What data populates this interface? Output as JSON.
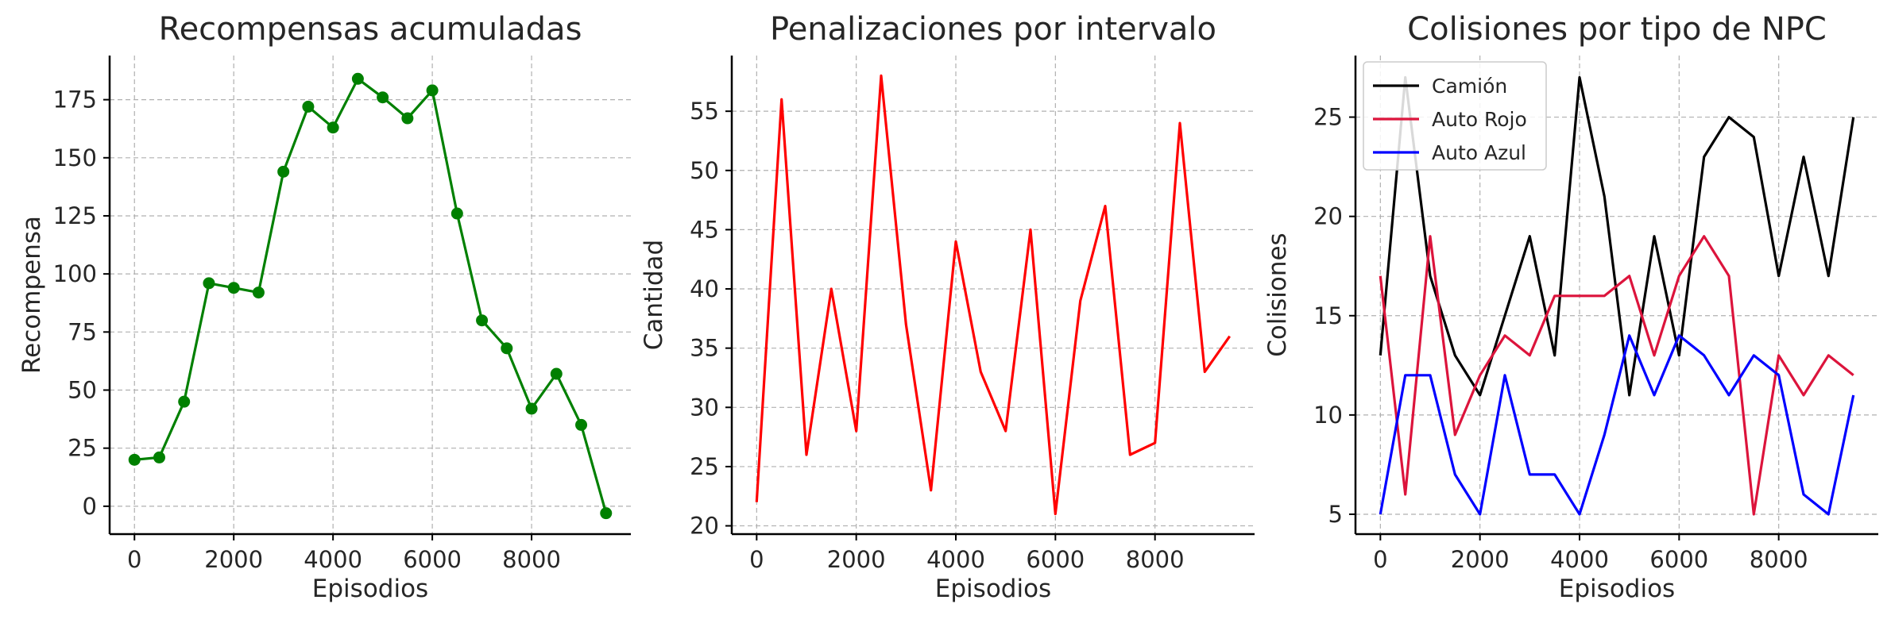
{
  "chart_data": [
    {
      "type": "line",
      "title": "Recompensas acumuladas",
      "xlabel": "Episodios",
      "ylabel": "Recompensa",
      "grid": true,
      "markers": true,
      "color": "#008000",
      "xlim": [
        -500,
        10000
      ],
      "ylim": [
        -12,
        194
      ],
      "xticks": [
        0,
        2000,
        4000,
        6000,
        8000
      ],
      "yticks": [
        0,
        25,
        50,
        75,
        100,
        125,
        150,
        175
      ],
      "x": [
        0,
        500,
        1000,
        1500,
        2000,
        2500,
        3000,
        3500,
        4000,
        4500,
        5000,
        5500,
        6000,
        6500,
        7000,
        7500,
        8000,
        8500,
        9000,
        9500
      ],
      "values": [
        20,
        21,
        45,
        96,
        94,
        92,
        144,
        172,
        163,
        184,
        176,
        167,
        179,
        126,
        80,
        68,
        42,
        57,
        35,
        -3
      ]
    },
    {
      "type": "line",
      "title": "Penalizaciones por intervalo",
      "xlabel": "Episodios",
      "ylabel": "Cantidad",
      "grid": true,
      "color": "#ff0000",
      "xlim": [
        -500,
        10000
      ],
      "ylim": [
        19.3,
        59.7
      ],
      "xticks": [
        0,
        2000,
        4000,
        6000,
        8000
      ],
      "yticks": [
        20,
        25,
        30,
        35,
        40,
        45,
        50,
        55
      ],
      "x": [
        0,
        500,
        1000,
        1500,
        2000,
        2500,
        3000,
        3500,
        4000,
        4500,
        5000,
        5500,
        6000,
        6500,
        7000,
        7500,
        8000,
        8500,
        9000,
        9500
      ],
      "values": [
        22,
        56,
        26,
        40,
        28,
        58,
        37,
        23,
        44,
        33,
        28,
        45,
        21,
        39,
        47,
        26,
        27,
        54,
        33,
        36
      ]
    },
    {
      "type": "line",
      "title": "Colisiones por tipo de NPC",
      "xlabel": "Episodios",
      "ylabel": "Colisiones",
      "grid": true,
      "legend": "top-left",
      "xlim": [
        -500,
        10000
      ],
      "ylim": [
        4,
        28.1
      ],
      "xticks": [
        0,
        2000,
        4000,
        6000,
        8000
      ],
      "yticks": [
        5,
        10,
        15,
        20,
        25
      ],
      "x": [
        0,
        500,
        1000,
        1500,
        2000,
        2500,
        3000,
        3500,
        4000,
        4500,
        5000,
        5500,
        6000,
        6500,
        7000,
        7500,
        8000,
        8500,
        9000,
        9500
      ],
      "series": [
        {
          "name": "Camión",
          "color": "#000000",
          "values": [
            13,
            27,
            17,
            13,
            11,
            15,
            19,
            13,
            27,
            21,
            11,
            19,
            13,
            23,
            25,
            24,
            17,
            23,
            17,
            25
          ]
        },
        {
          "name": "Auto Rojo",
          "color": "#dc143c",
          "values": [
            17,
            6,
            19,
            9,
            12,
            14,
            13,
            16,
            16,
            16,
            17,
            13,
            17,
            19,
            17,
            5,
            13,
            11,
            13,
            12
          ]
        },
        {
          "name": "Auto Azul",
          "color": "#0000ff",
          "values": [
            5,
            12,
            12,
            7,
            5,
            12,
            7,
            7,
            5,
            9,
            14,
            11,
            14,
            13,
            11,
            13,
            12,
            6,
            5,
            11
          ]
        }
      ]
    }
  ]
}
